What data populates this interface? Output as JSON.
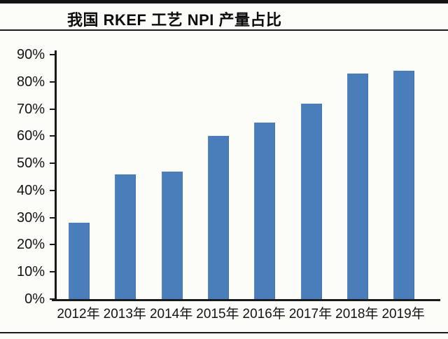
{
  "header": {
    "title": "我国 RKEF 工艺 NPI 产量占比"
  },
  "chart_data": {
    "type": "bar",
    "title": "我国 RKEF 工艺 NPI 产量占比",
    "categories": [
      "2012年",
      "2013年",
      "2014年",
      "2015年",
      "2016年",
      "2017年",
      "2018年",
      "2019年"
    ],
    "values": [
      28,
      46,
      47,
      60,
      65,
      72,
      83,
      84
    ],
    "unit": "%",
    "xlabel": "",
    "ylabel": "",
    "ylim": [
      0,
      90
    ],
    "ytick_step": 10,
    "ytick_labels": [
      "0%",
      "10%",
      "20%",
      "30%",
      "40%",
      "50%",
      "60%",
      "70%",
      "80%",
      "90%"
    ],
    "grid": false,
    "legend_position": "none",
    "bar_color": "#4a7ebb",
    "axis_color": "#1a1a1a"
  }
}
